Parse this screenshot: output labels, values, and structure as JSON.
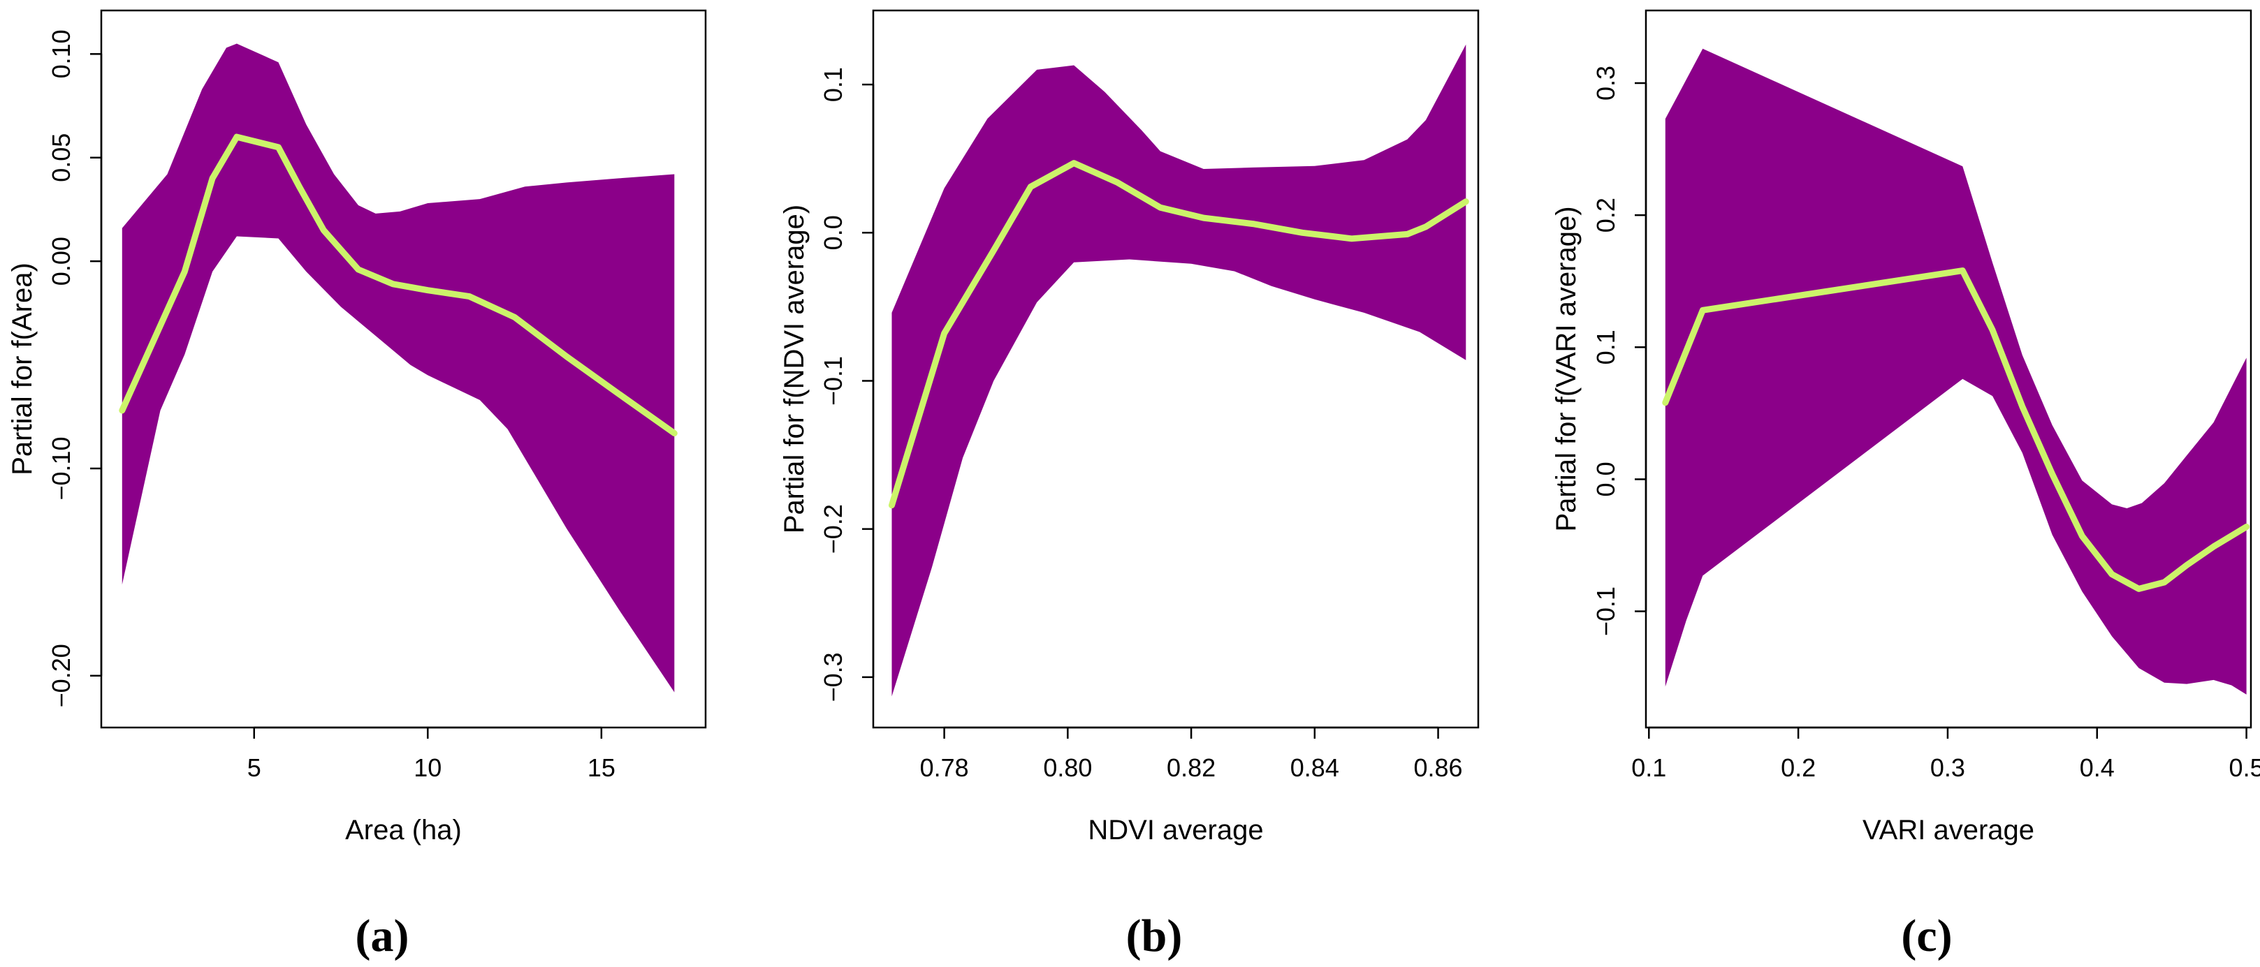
{
  "colors": {
    "band": "#8B0089",
    "line": "#CCF46A",
    "axis": "#000000"
  },
  "chart_data": [
    {
      "type": "area",
      "panel_label": "(a)",
      "xlabel": "Area (ha)",
      "ylabel": "Partial for f(Area)",
      "xlim": [
        0.6,
        18.0
      ],
      "ylim": [
        -0.225,
        0.121
      ],
      "xticks": [
        5,
        10,
        15
      ],
      "xtick_labels": [
        "5",
        "10",
        "15"
      ],
      "yticks": [
        -0.2,
        -0.1,
        0.0,
        0.05,
        0.1
      ],
      "ytick_labels": [
        "−0.20",
        "−0.10",
        "0.00",
        "0.05",
        "0.10"
      ],
      "series": [
        {
          "name": "fit",
          "x": [
            1.2,
            3.0,
            3.8,
            4.5,
            5.7,
            6.3,
            7.0,
            8.0,
            9.0,
            10.0,
            11.2,
            12.5,
            14.0,
            15.5,
            17.1
          ],
          "y": [
            -0.072,
            -0.005,
            0.04,
            0.06,
            0.055,
            0.036,
            0.015,
            -0.004,
            -0.011,
            -0.014,
            -0.017,
            -0.027,
            -0.046,
            -0.064,
            -0.083
          ]
        },
        {
          "name": "upper",
          "x": [
            1.2,
            2.5,
            3.5,
            4.2,
            4.5,
            5.7,
            6.5,
            7.3,
            8.0,
            8.5,
            9.2,
            10.0,
            11.5,
            12.8,
            14.0,
            15.5,
            17.1
          ],
          "y": [
            0.016,
            0.042,
            0.083,
            0.103,
            0.105,
            0.096,
            0.066,
            0.042,
            0.027,
            0.023,
            0.024,
            0.028,
            0.03,
            0.036,
            0.038,
            0.04,
            0.042
          ]
        },
        {
          "name": "lower",
          "x": [
            1.2,
            2.3,
            3.0,
            3.8,
            4.5,
            5.7,
            6.5,
            7.5,
            8.5,
            9.5,
            10.0,
            11.5,
            12.3,
            14.0,
            15.5,
            17.1
          ],
          "y": [
            -0.156,
            -0.072,
            -0.045,
            -0.005,
            0.012,
            0.011,
            -0.005,
            -0.022,
            -0.036,
            -0.05,
            -0.055,
            -0.067,
            -0.081,
            -0.129,
            -0.168,
            -0.208
          ]
        }
      ]
    },
    {
      "type": "area",
      "panel_label": "(b)",
      "xlabel": "NDVI average",
      "ylabel": "Partial for f(NDVI average)",
      "xlim": [
        0.7685,
        0.8665
      ],
      "ylim": [
        -0.334,
        0.15
      ],
      "xticks": [
        0.78,
        0.8,
        0.82,
        0.84,
        0.86
      ],
      "xtick_labels": [
        "0.78",
        "0.80",
        "0.82",
        "0.84",
        "0.86"
      ],
      "yticks": [
        -0.3,
        -0.2,
        -0.1,
        0.0,
        0.1
      ],
      "ytick_labels": [
        "−0.3",
        "−0.2",
        "−0.1",
        "0.0",
        "0.1"
      ],
      "series": [
        {
          "name": "fit",
          "x": [
            0.7715,
            0.78,
            0.788,
            0.794,
            0.801,
            0.808,
            0.815,
            0.822,
            0.83,
            0.838,
            0.846,
            0.855,
            0.858,
            0.8645
          ],
          "y": [
            -0.184,
            -0.068,
            -0.012,
            0.031,
            0.047,
            0.034,
            0.017,
            0.01,
            0.006,
            0.0,
            -0.004,
            -0.001,
            0.004,
            0.021
          ]
        },
        {
          "name": "upper",
          "x": [
            0.7715,
            0.78,
            0.787,
            0.795,
            0.801,
            0.806,
            0.812,
            0.815,
            0.822,
            0.83,
            0.84,
            0.848,
            0.855,
            0.858,
            0.8645
          ],
          "y": [
            -0.054,
            0.03,
            0.077,
            0.11,
            0.113,
            0.095,
            0.069,
            0.055,
            0.043,
            0.044,
            0.045,
            0.049,
            0.063,
            0.076,
            0.127
          ]
        },
        {
          "name": "lower",
          "x": [
            0.7715,
            0.778,
            0.783,
            0.788,
            0.795,
            0.801,
            0.81,
            0.82,
            0.827,
            0.833,
            0.84,
            0.848,
            0.857,
            0.8645
          ],
          "y": [
            -0.313,
            -0.226,
            -0.152,
            -0.1,
            -0.047,
            -0.02,
            -0.018,
            -0.021,
            -0.026,
            -0.036,
            -0.045,
            -0.054,
            -0.067,
            -0.086
          ]
        }
      ]
    },
    {
      "type": "area",
      "panel_label": "(c)",
      "xlabel": "VARI average",
      "ylabel": "Partial for f(VARI average)",
      "xlim": [
        0.098,
        0.503
      ],
      "ylim": [
        -0.188,
        0.355
      ],
      "xticks": [
        0.1,
        0.2,
        0.3,
        0.4,
        0.5
      ],
      "xtick_labels": [
        "0.1",
        "0.2",
        "0.3",
        "0.4",
        "0.5"
      ],
      "yticks": [
        -0.1,
        0.0,
        0.1,
        0.2,
        0.3
      ],
      "ytick_labels": [
        "−0.1",
        "0.0",
        "0.1",
        "0.2",
        "0.3"
      ],
      "series": [
        {
          "name": "fit",
          "x": [
            0.111,
            0.136,
            0.31,
            0.33,
            0.35,
            0.37,
            0.39,
            0.41,
            0.428,
            0.445,
            0.46,
            0.478,
            0.5
          ],
          "y": [
            0.058,
            0.128,
            0.158,
            0.113,
            0.055,
            0.004,
            -0.043,
            -0.072,
            -0.083,
            -0.078,
            -0.065,
            -0.051,
            -0.036
          ]
        },
        {
          "name": "upper",
          "x": [
            0.111,
            0.12,
            0.136,
            0.31,
            0.33,
            0.35,
            0.37,
            0.39,
            0.41,
            0.42,
            0.43,
            0.445,
            0.46,
            0.478,
            0.5
          ],
          "y": [
            0.273,
            0.292,
            0.326,
            0.237,
            0.164,
            0.094,
            0.041,
            -0.001,
            -0.019,
            -0.022,
            -0.018,
            -0.003,
            0.018,
            0.043,
            0.092
          ]
        },
        {
          "name": "lower",
          "x": [
            0.111,
            0.125,
            0.136,
            0.31,
            0.33,
            0.35,
            0.37,
            0.39,
            0.41,
            0.428,
            0.445,
            0.46,
            0.478,
            0.49,
            0.5
          ],
          "y": [
            -0.157,
            -0.107,
            -0.073,
            0.076,
            0.063,
            0.02,
            -0.042,
            -0.085,
            -0.119,
            -0.143,
            -0.154,
            -0.155,
            -0.152,
            -0.156,
            -0.163
          ]
        }
      ]
    }
  ]
}
